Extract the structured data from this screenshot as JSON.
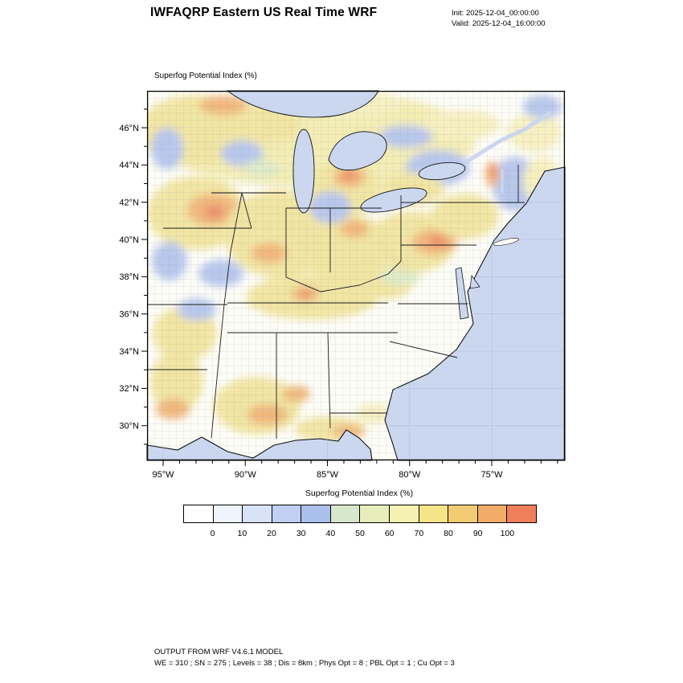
{
  "header": {
    "title": "IWFAQRP Eastern US Real Time WRF",
    "init": "Init: 2025-12-04_00:00:00",
    "valid": "Valid: 2025-12-04_16:00:00"
  },
  "map": {
    "panel_label": "Superfog Potential Index  (%)",
    "y_ticks": [
      {
        "label": "46°N",
        "lat": 46
      },
      {
        "label": "44°N",
        "lat": 44
      },
      {
        "label": "42°N",
        "lat": 42
      },
      {
        "label": "40°N",
        "lat": 40
      },
      {
        "label": "38°N",
        "lat": 38
      },
      {
        "label": "36°N",
        "lat": 36
      },
      {
        "label": "34°N",
        "lat": 34
      },
      {
        "label": "32°N",
        "lat": 32
      },
      {
        "label": "30°N",
        "lat": 30
      }
    ],
    "x_ticks": [
      {
        "label": "95°W",
        "lon": 95
      },
      {
        "label": "90°W",
        "lon": 90
      },
      {
        "label": "85°W",
        "lon": 85
      },
      {
        "label": "80°W",
        "lon": 80
      },
      {
        "label": "75°W",
        "lon": 75
      }
    ]
  },
  "colorbar": {
    "title": "Superfog Potential Index  (%)",
    "tick_labels": [
      "0",
      "10",
      "20",
      "30",
      "40",
      "50",
      "60",
      "70",
      "80",
      "90",
      "100"
    ],
    "colors": [
      "#ffffff",
      "#eef3fc",
      "#d9e3f8",
      "#c1cff3",
      "#aabfec",
      "#d7e7cb",
      "#e7eebc",
      "#f5f1b0",
      "#f5e488",
      "#f2cc72",
      "#f1ad67",
      "#ef7f5b"
    ]
  },
  "footer": {
    "line1": "OUTPUT FROM WRF V4.6.1 MODEL",
    "line2": "WE = 310 ; SN = 275 ; Levels = 38 ; Dis = 8km ; Phys Opt = 8 ; PBL Opt = 1 ; Cu Opt = 3"
  },
  "chart_data": {
    "type": "heatmap",
    "title": "Superfog Potential Index  (%)",
    "region_axes": {
      "y_tick_labels": [
        "46°N",
        "44°N",
        "42°N",
        "40°N",
        "38°N",
        "36°N",
        "34°N",
        "32°N",
        "30°N"
      ],
      "x_tick_labels": [
        "95°W",
        "90°W",
        "85°W",
        "80°W",
        "75°W"
      ]
    },
    "colorbar": {
      "levels": [
        0,
        10,
        20,
        30,
        40,
        50,
        60,
        70,
        80,
        90,
        100
      ],
      "colors": [
        "#ffffff",
        "#eef3fc",
        "#d9e3f8",
        "#c1cff3",
        "#aabfec",
        "#d7e7cb",
        "#e7eebc",
        "#f5f1b0",
        "#f5e488",
        "#f2cc72",
        "#f1ad67",
        "#ef7f5b"
      ]
    },
    "run": {
      "init": "2025-12-04_00:00:00",
      "valid": "2025-12-04_16:00:00"
    },
    "model_notes": [
      "OUTPUT FROM WRF V4.6.1 MODEL",
      "WE = 310 ; SN = 275 ; Levels = 38 ; Dis = 8km ; Phys Opt = 8 ; PBL Opt = 1 ; Cu Opt = 3"
    ]
  }
}
